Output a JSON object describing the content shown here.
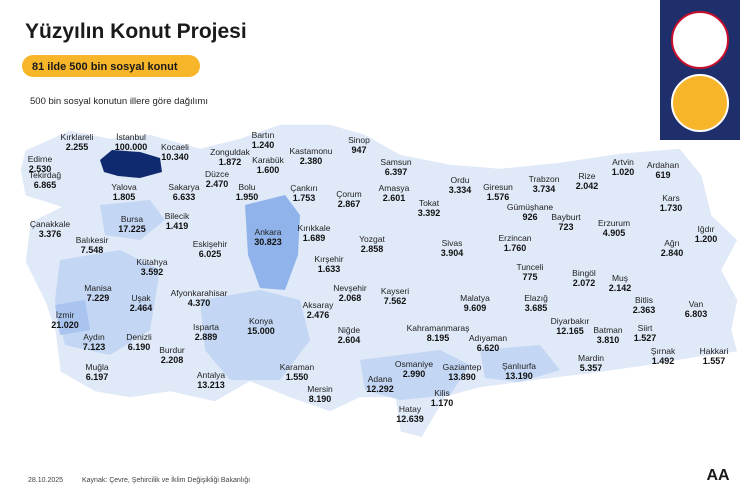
{
  "header": {
    "title": "Yüzyılın Konut Projesi",
    "banner": "81 ilde 500 bin sosyal konut",
    "subtitle": "500 bin sosyal konutun illere göre dağılımı"
  },
  "footer": {
    "date": "28.10.2025",
    "source": "Kaynak: Çevre, Şehircilik ve İklim Değişikliği Bakanlığı",
    "logo": "AA"
  },
  "provinces": [
    {
      "name": "Kırklareli",
      "value": "2.255"
    },
    {
      "name": "İstanbul",
      "value": "100.000"
    },
    {
      "name": "Kocaeli",
      "value": "10.340"
    },
    {
      "name": "Edirne",
      "value": "2.530"
    },
    {
      "name": "Tekirdağ",
      "value": "6.865"
    },
    {
      "name": "Yalova",
      "value": "1.805"
    },
    {
      "name": "Sakarya",
      "value": "6.633"
    },
    {
      "name": "Düzce",
      "value": "2.470"
    },
    {
      "name": "Zonguldak",
      "value": "1.872"
    },
    {
      "name": "Bartın",
      "value": "1.240"
    },
    {
      "name": "Karabük",
      "value": "1.600"
    },
    {
      "name": "Kastamonu",
      "value": "2.380"
    },
    {
      "name": "Sinop",
      "value": "947"
    },
    {
      "name": "Bolu",
      "value": "1.950"
    },
    {
      "name": "Çankırı",
      "value": "1.753"
    },
    {
      "name": "Samsun",
      "value": "6.397"
    },
    {
      "name": "Çorum",
      "value": "2.867"
    },
    {
      "name": "Amasya",
      "value": "2.601"
    },
    {
      "name": "Tokat",
      "value": "3.392"
    },
    {
      "name": "Ordu",
      "value": "3.334"
    },
    {
      "name": "Giresun",
      "value": "1.576"
    },
    {
      "name": "Trabzon",
      "value": "3.734"
    },
    {
      "name": "Rize",
      "value": "2.042"
    },
    {
      "name": "Artvin",
      "value": "1.020"
    },
    {
      "name": "Ardahan",
      "value": "619"
    },
    {
      "name": "Kars",
      "value": "1.730"
    },
    {
      "name": "Gümüşhane",
      "value": "926"
    },
    {
      "name": "Bayburt",
      "value": "723"
    },
    {
      "name": "Erzurum",
      "value": "4.905"
    },
    {
      "name": "Iğdır",
      "value": "1.200"
    },
    {
      "name": "Çanakkale",
      "value": "3.376"
    },
    {
      "name": "Bursa",
      "value": "17.225"
    },
    {
      "name": "Bilecik",
      "value": "1.419"
    },
    {
      "name": "Balıkesir",
      "value": "7.548"
    },
    {
      "name": "Eskişehir",
      "value": "6.025"
    },
    {
      "name": "Ankara",
      "value": "30.823"
    },
    {
      "name": "Kırıkkale",
      "value": "1.689"
    },
    {
      "name": "Yozgat",
      "value": "2.858"
    },
    {
      "name": "Sivas",
      "value": "3.904"
    },
    {
      "name": "Erzincan",
      "value": "1.760"
    },
    {
      "name": "Ağrı",
      "value": "2.840"
    },
    {
      "name": "Kütahya",
      "value": "3.592"
    },
    {
      "name": "Kırşehir",
      "value": "1.633"
    },
    {
      "name": "Tunceli",
      "value": "775"
    },
    {
      "name": "Bingöl",
      "value": "2.072"
    },
    {
      "name": "Muş",
      "value": "2.142"
    },
    {
      "name": "Manisa",
      "value": "7.229"
    },
    {
      "name": "Uşak",
      "value": "2.464"
    },
    {
      "name": "Afyonkarahisar",
      "value": "4.370"
    },
    {
      "name": "Nevşehir",
      "value": "2.068"
    },
    {
      "name": "Kayseri",
      "value": "7.562"
    },
    {
      "name": "Malatya",
      "value": "9.609"
    },
    {
      "name": "Elazığ",
      "value": "3.685"
    },
    {
      "name": "Bitlis",
      "value": "2.363"
    },
    {
      "name": "Van",
      "value": "6.803"
    },
    {
      "name": "Aksaray",
      "value": "2.476"
    },
    {
      "name": "İzmir",
      "value": "21.020"
    },
    {
      "name": "Konya",
      "value": "15.000"
    },
    {
      "name": "Isparta",
      "value": "2.889"
    },
    {
      "name": "Niğde",
      "value": "2.604"
    },
    {
      "name": "Kahramanmaraş",
      "value": "8.195"
    },
    {
      "name": "Diyarbakır",
      "value": "12.165"
    },
    {
      "name": "Siirt",
      "value": "1.527"
    },
    {
      "name": "Batman",
      "value": "3.810"
    },
    {
      "name": "Aydın",
      "value": "7.123"
    },
    {
      "name": "Denizli",
      "value": "6.190"
    },
    {
      "name": "Adıyaman",
      "value": "6.620"
    },
    {
      "name": "Burdur",
      "value": "2.208"
    },
    {
      "name": "Şırnak",
      "value": "1.492"
    },
    {
      "name": "Hakkari",
      "value": "1.557"
    },
    {
      "name": "Mardin",
      "value": "5.357"
    },
    {
      "name": "Muğla",
      "value": "6.197"
    },
    {
      "name": "Osmaniye",
      "value": "2.990"
    },
    {
      "name": "Şanlıurfa",
      "value": "13.190"
    },
    {
      "name": "Antalya",
      "value": "13.213"
    },
    {
      "name": "Karaman",
      "value": "1.550"
    },
    {
      "name": "Gaziantep",
      "value": "13.890"
    },
    {
      "name": "Adana",
      "value": "12.292"
    },
    {
      "name": "Mersin",
      "value": "8.190"
    },
    {
      "name": "Kilis",
      "value": "1.170"
    },
    {
      "name": "Hatay",
      "value": "12.639"
    }
  ]
}
